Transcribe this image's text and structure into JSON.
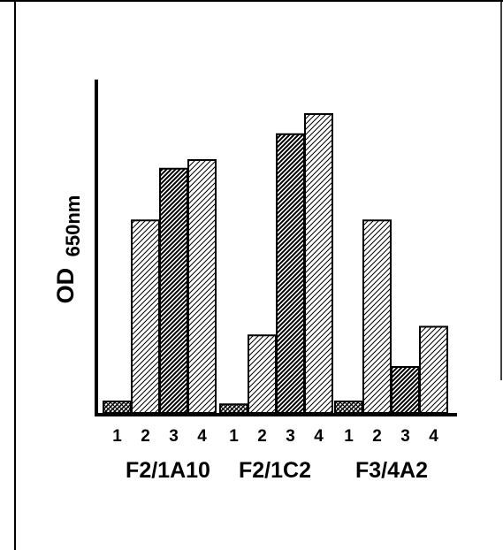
{
  "chart_data": {
    "type": "bar",
    "ylabel_main": "OD",
    "ylabel_sub": "650nm",
    "xlabel": "",
    "title": "",
    "groups": [
      {
        "name": "F2/1A10",
        "categories": [
          "1",
          "2",
          "3",
          "4"
        ],
        "values": [
          0.04,
          0.67,
          0.85,
          0.88
        ]
      },
      {
        "name": "F2/1C2",
        "categories": [
          "1",
          "2",
          "3",
          "4"
        ],
        "values": [
          0.03,
          0.27,
          0.97,
          1.04
        ]
      },
      {
        "name": "F3/4A2",
        "categories": [
          "1",
          "2",
          "3",
          "4"
        ],
        "values": [
          0.04,
          0.67,
          0.16,
          0.3
        ]
      }
    ],
    "ylim": [
      0,
      1.04
    ],
    "grid": false,
    "patterns": [
      "cross-dense",
      "diag-light",
      "diag-dark",
      "diag-light"
    ]
  }
}
